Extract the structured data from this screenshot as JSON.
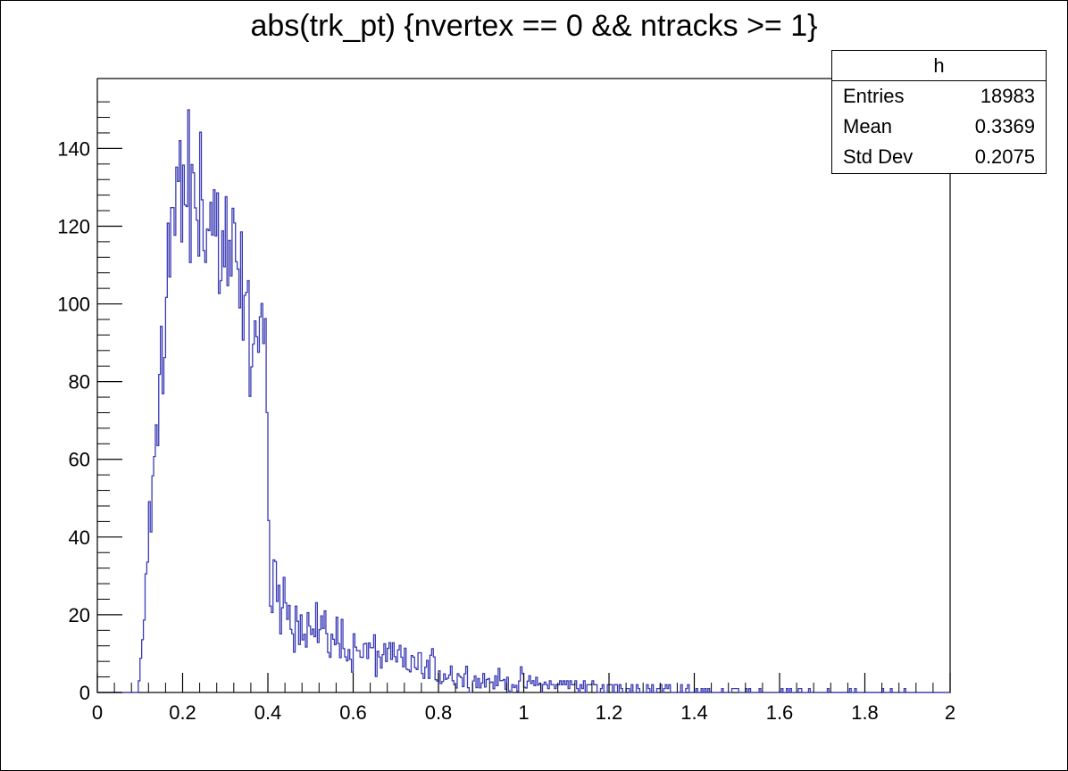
{
  "title": "abs(trk_pt) {nvertex == 0 && ntracks >= 1}",
  "stats": {
    "name": "h",
    "rows": [
      {
        "label": "Entries",
        "value": "18983"
      },
      {
        "label": "Mean",
        "value": "0.3369"
      },
      {
        "label": "Std Dev",
        "value": "0.2075"
      }
    ]
  },
  "chart_data": {
    "type": "histogram",
    "title": "abs(trk_pt) {nvertex == 0 && ntracks >= 1}",
    "xlabel": "",
    "ylabel": "",
    "xlim": [
      0,
      2
    ],
    "ylim": [
      0,
      158
    ],
    "xticks": [
      "0",
      "0.2",
      "0.4",
      "0.6",
      "0.8",
      "1",
      "1.2",
      "1.4",
      "1.6",
      "1.8",
      "2"
    ],
    "yticks": [
      "0",
      "20",
      "40",
      "60",
      "80",
      "100",
      "120",
      "140"
    ],
    "line_color": "#3b3bb5",
    "grid": false,
    "legend": "none",
    "anchors": [
      [
        0.0,
        0
      ],
      [
        0.095,
        0
      ],
      [
        0.1,
        3
      ],
      [
        0.11,
        20
      ],
      [
        0.12,
        40
      ],
      [
        0.13,
        52
      ],
      [
        0.14,
        65
      ],
      [
        0.15,
        92
      ],
      [
        0.16,
        100
      ],
      [
        0.17,
        115
      ],
      [
        0.18,
        122
      ],
      [
        0.19,
        127
      ],
      [
        0.2,
        128
      ],
      [
        0.22,
        127
      ],
      [
        0.24,
        126
      ],
      [
        0.26,
        124
      ],
      [
        0.28,
        118
      ],
      [
        0.3,
        113
      ],
      [
        0.32,
        108
      ],
      [
        0.34,
        100
      ],
      [
        0.36,
        94
      ],
      [
        0.38,
        92
      ],
      [
        0.395,
        88
      ],
      [
        0.405,
        26
      ],
      [
        0.42,
        24
      ],
      [
        0.45,
        21
      ],
      [
        0.5,
        17
      ],
      [
        0.55,
        14
      ],
      [
        0.6,
        11
      ],
      [
        0.65,
        10
      ],
      [
        0.7,
        8
      ],
      [
        0.75,
        7
      ],
      [
        0.8,
        5.5
      ],
      [
        0.85,
        4
      ],
      [
        0.9,
        3.2
      ],
      [
        0.95,
        2.8
      ],
      [
        1.0,
        2.3
      ],
      [
        1.05,
        2.0
      ],
      [
        1.1,
        1.4
      ],
      [
        1.2,
        1.0
      ],
      [
        1.3,
        0.7
      ],
      [
        1.4,
        0.5
      ],
      [
        1.5,
        0.35
      ],
      [
        1.6,
        0.25
      ],
      [
        1.7,
        0.2
      ],
      [
        1.8,
        0.15
      ],
      [
        1.9,
        0.1
      ],
      [
        1.96,
        0.05
      ],
      [
        2.0,
        0
      ]
    ]
  }
}
